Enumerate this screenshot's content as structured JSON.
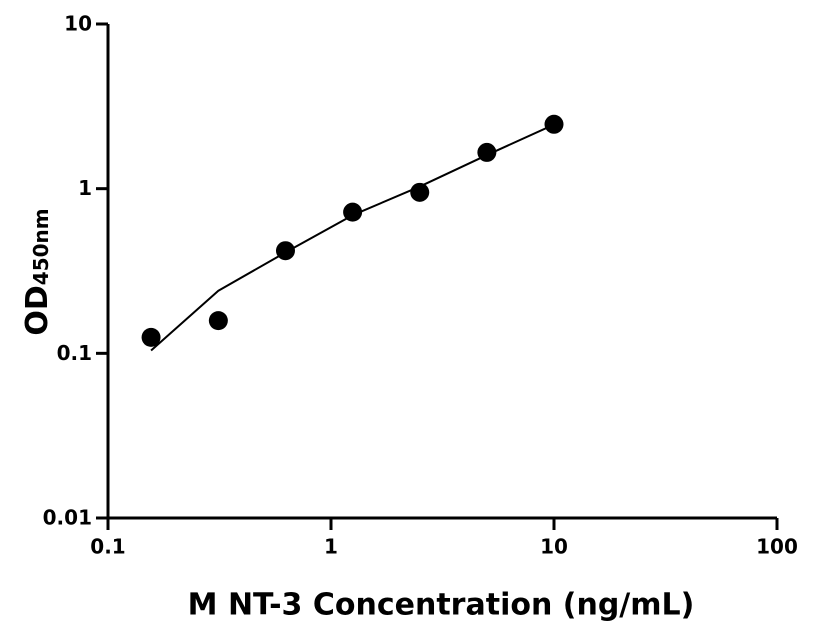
{
  "chart_data": {
    "type": "scatter",
    "x_label": "M NT-3 Concentration (ng/mL)",
    "y_label": "OD",
    "y_label_sub": "450nm",
    "x": [
      0.156,
      0.3125,
      0.625,
      1.25,
      2.5,
      5,
      10
    ],
    "values": [
      0.125,
      0.158,
      0.42,
      0.72,
      0.95,
      1.66,
      2.46
    ],
    "color": "#000000",
    "fit": {
      "x": [
        0.156,
        0.3125,
        0.625,
        1.25,
        2.5,
        5,
        10
      ],
      "values": [
        0.104,
        0.24,
        0.41,
        0.69,
        1.03,
        1.6,
        2.45
      ]
    },
    "xscale": "log",
    "yscale": "log",
    "xlim": [
      0.1,
      100
    ],
    "ylim": [
      0.01,
      10
    ],
    "xticks": [
      0.1,
      1,
      10,
      100
    ],
    "yticks": [
      0.01,
      0.1,
      1,
      10
    ]
  }
}
